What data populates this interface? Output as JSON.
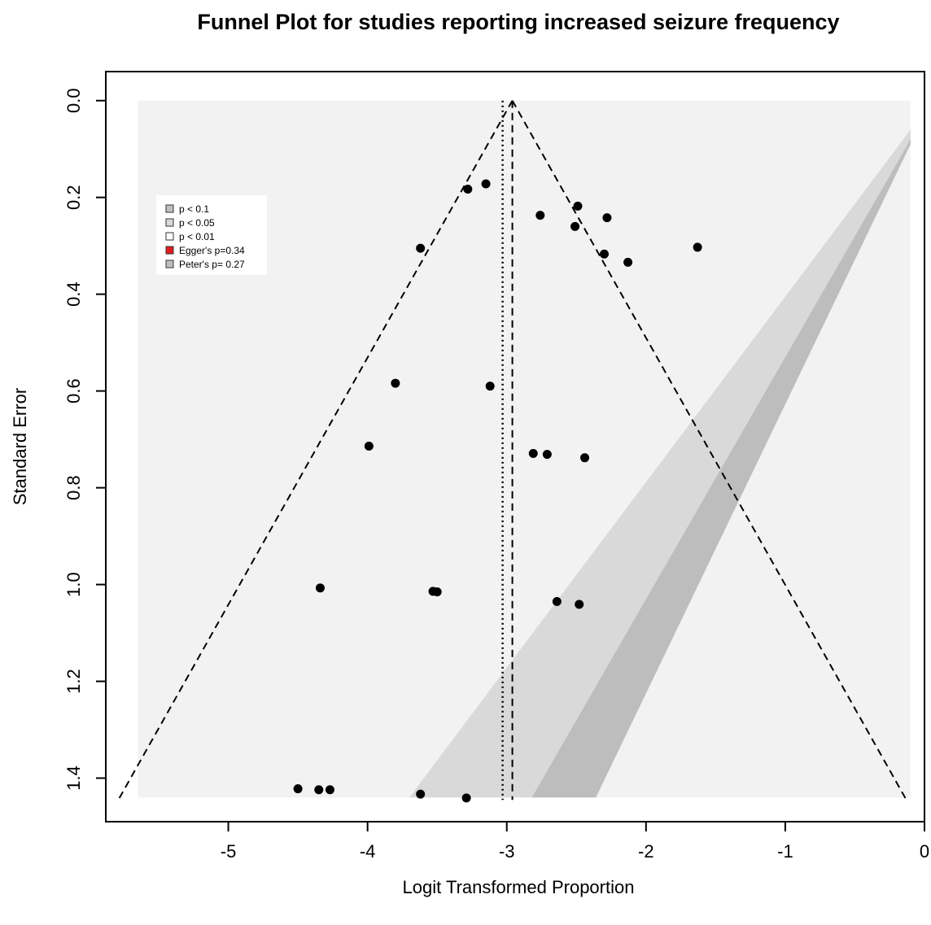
{
  "chart_data": {
    "type": "scatter",
    "title": "Funnel Plot for studies reporting increased seizure frequency",
    "xlabel": "Logit Transformed Proportion",
    "ylabel": "Standard Error",
    "xlim": [
      -5.88,
      0.0
    ],
    "ylim": [
      1.49,
      -0.06
    ],
    "y_reversed": true,
    "x_ticks": [
      -5,
      -4,
      -3,
      -2,
      -1,
      0
    ],
    "x_tick_labels": [
      "-5",
      "-4",
      "-3",
      "-2",
      "-1",
      "0"
    ],
    "y_ticks": [
      0.0,
      0.2,
      0.4,
      0.6,
      0.8,
      1.0,
      1.2,
      1.4
    ],
    "y_tick_labels": [
      "0.0",
      "0.2",
      "0.4",
      "0.6",
      "0.8",
      "1.0",
      "1.2",
      "1.4"
    ],
    "grid": false,
    "legend_position": "top-left",
    "legend": [
      {
        "label": "p < 0.1",
        "color": "#bfbfbf"
      },
      {
        "label": "p < 0.05",
        "color": "#d9d9d9"
      },
      {
        "label": "p < 0.01",
        "color": "#ffffff"
      },
      {
        "label": "Egger's p=0.34",
        "color": "#e31a1c"
      },
      {
        "label": "Peter's p= 0.27",
        "color": "#bfbfbf"
      }
    ],
    "pooled_estimate_fixed": -2.96,
    "pooled_estimate_random": -3.03,
    "max_se": 1.44,
    "background_x_range": [
      -5.65,
      -0.1
    ],
    "contour_colors": {
      "background": "#f2f2f2",
      "p_0_1": "#d9d9d9",
      "p_0_05": "#bdbdbd",
      "point": "#000000",
      "line": "#000000"
    },
    "contour_bands": [
      {
        "band": "p < 0.1",
        "outer_x_at_max_se": -3.7,
        "inner_x_at_max_se": -2.82,
        "outer_x_at_top": -0.1,
        "outer_y_at_top": 0.06,
        "inner_y_at_top": 0.08
      },
      {
        "band": "p < 0.05",
        "outer_x_at_max_se": -2.82,
        "inner_x_at_max_se": -2.36,
        "outer_x_at_top": -0.1,
        "outer_y_at_top": 0.08,
        "inner_y_at_top": 0.09
      }
    ],
    "points": [
      {
        "x": -3.28,
        "y": 0.183
      },
      {
        "x": -3.15,
        "y": 0.172
      },
      {
        "x": -2.49,
        "y": 0.218
      },
      {
        "x": -2.76,
        "y": 0.237
      },
      {
        "x": -2.28,
        "y": 0.242
      },
      {
        "x": -2.51,
        "y": 0.26
      },
      {
        "x": -1.63,
        "y": 0.303
      },
      {
        "x": -3.62,
        "y": 0.305
      },
      {
        "x": -2.3,
        "y": 0.317
      },
      {
        "x": -2.13,
        "y": 0.334
      },
      {
        "x": -3.8,
        "y": 0.584
      },
      {
        "x": -3.12,
        "y": 0.59
      },
      {
        "x": -3.99,
        "y": 0.714
      },
      {
        "x": -2.81,
        "y": 0.729
      },
      {
        "x": -2.71,
        "y": 0.731
      },
      {
        "x": -2.44,
        "y": 0.738
      },
      {
        "x": -4.34,
        "y": 1.007
      },
      {
        "x": -3.53,
        "y": 1.014
      },
      {
        "x": -3.5,
        "y": 1.015
      },
      {
        "x": -2.64,
        "y": 1.035
      },
      {
        "x": -2.48,
        "y": 1.041
      },
      {
        "x": -4.5,
        "y": 1.422
      },
      {
        "x": -4.35,
        "y": 1.424
      },
      {
        "x": -4.27,
        "y": 1.424
      },
      {
        "x": -3.62,
        "y": 1.433
      },
      {
        "x": -3.29,
        "y": 1.441
      }
    ]
  }
}
